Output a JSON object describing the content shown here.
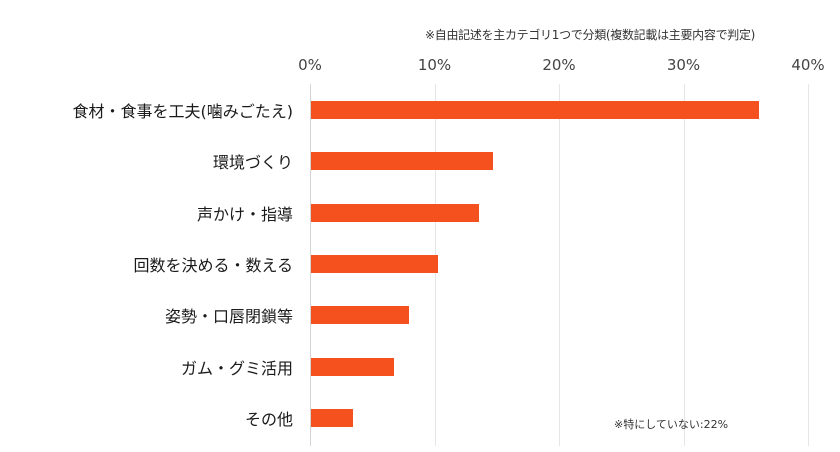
{
  "chart_data": {
    "type": "bar",
    "orientation": "horizontal",
    "title": "",
    "note_top": "※自由記述を主カテゴリ1つで分類(複数記載は主要内容で判定)",
    "note_bottom": "※特にしていない:22%",
    "categories": [
      "食材・食事を工夫(噛みごたえ)",
      "環境づくり",
      "声かけ・指導",
      "回数を決める・数える",
      "姿勢・口唇閉鎖等",
      "ガム・グミ活用",
      "その他"
    ],
    "values": [
      36,
      14.6,
      13.5,
      10.2,
      7.9,
      6.7,
      3.4
    ],
    "xlabel": "",
    "ylabel": "",
    "xlim": [
      0,
      40
    ],
    "x_ticks": [
      "0%",
      "10%",
      "20%",
      "30%",
      "40%"
    ],
    "grid": true,
    "legend": null,
    "bar_color": "#F4511F"
  }
}
